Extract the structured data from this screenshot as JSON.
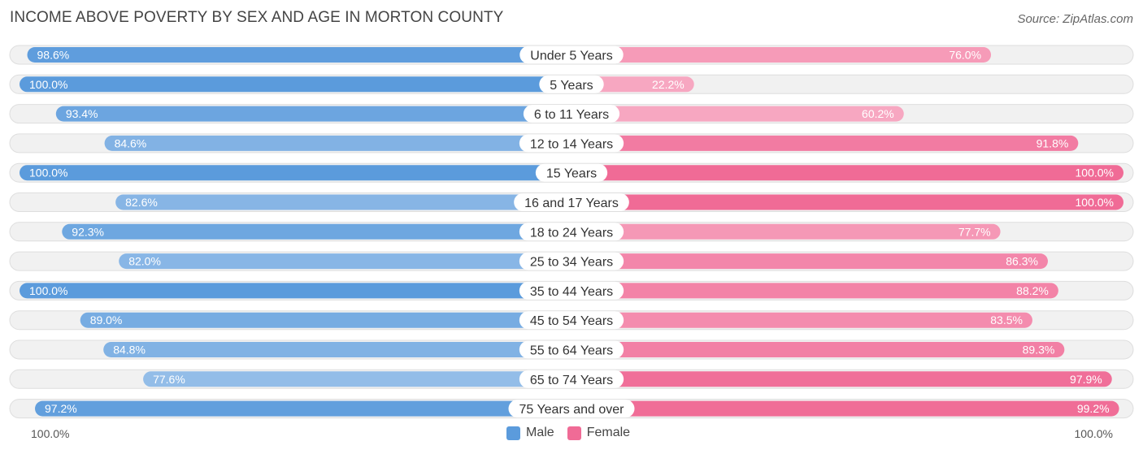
{
  "title": "INCOME ABOVE POVERTY BY SEX AND AGE IN MORTON COUNTY",
  "source": "Source: ZipAtlas.com",
  "chart_data": {
    "type": "bar",
    "orientation": "horizontal-diverging",
    "title": "INCOME ABOVE POVERTY BY SEX AND AGE IN MORTON COUNTY",
    "categories": [
      "Under 5 Years",
      "5 Years",
      "6 to 11 Years",
      "12 to 14 Years",
      "15 Years",
      "16 and 17 Years",
      "18 to 24 Years",
      "25 to 34 Years",
      "35 to 44 Years",
      "45 to 54 Years",
      "55 to 64 Years",
      "65 to 74 Years",
      "75 Years and over"
    ],
    "series": [
      {
        "name": "Male",
        "values": [
          98.6,
          100.0,
          93.4,
          84.6,
          100.0,
          82.6,
          92.3,
          82.0,
          100.0,
          89.0,
          84.8,
          77.6,
          97.2
        ],
        "labels": [
          "98.6%",
          "100.0%",
          "93.4%",
          "84.6%",
          "100.0%",
          "82.6%",
          "92.3%",
          "82.0%",
          "100.0%",
          "89.0%",
          "84.8%",
          "77.6%",
          "97.2%"
        ]
      },
      {
        "name": "Female",
        "values": [
          76.0,
          22.2,
          60.2,
          91.8,
          100.0,
          100.0,
          77.7,
          86.3,
          88.2,
          83.5,
          89.3,
          97.9,
          99.2
        ],
        "labels": [
          "76.0%",
          "22.2%",
          "60.2%",
          "91.8%",
          "100.0%",
          "100.0%",
          "77.7%",
          "86.3%",
          "88.2%",
          "83.5%",
          "89.3%",
          "97.9%",
          "99.2%"
        ]
      }
    ],
    "xlim": [
      0,
      100
    ],
    "axis_left_label": "100.0%",
    "axis_right_label": "100.0%",
    "legend": [
      {
        "name": "Male",
        "color": "#5b9bdc"
      },
      {
        "name": "Female",
        "color": "#f06b96"
      }
    ],
    "colors": {
      "male_strong": "#5b9bdc",
      "male_light": "#a6c8ec",
      "female_strong": "#f06b96",
      "female_light": "#f7a7c1"
    }
  }
}
